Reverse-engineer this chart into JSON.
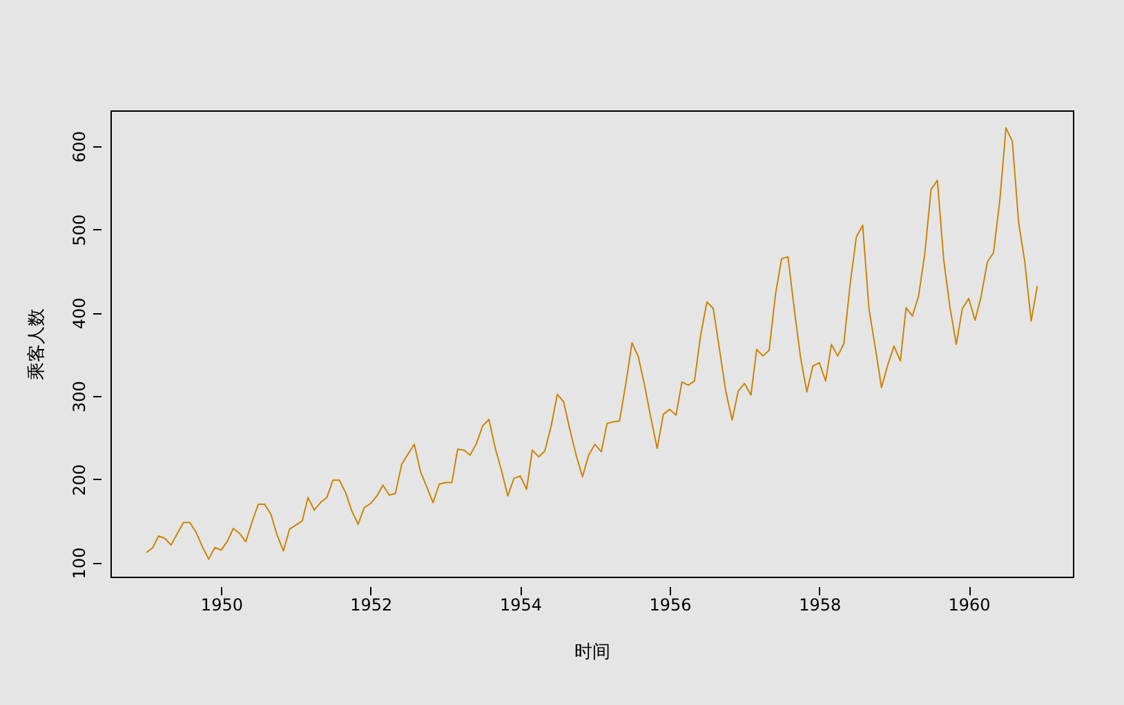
{
  "chart_data": {
    "type": "line",
    "xlabel": "时间",
    "ylabel": "乘客人数",
    "x": [
      "1949-01",
      "1949-02",
      "1949-03",
      "1949-04",
      "1949-05",
      "1949-06",
      "1949-07",
      "1949-08",
      "1949-09",
      "1949-10",
      "1949-11",
      "1949-12",
      "1950-01",
      "1950-02",
      "1950-03",
      "1950-04",
      "1950-05",
      "1950-06",
      "1950-07",
      "1950-08",
      "1950-09",
      "1950-10",
      "1950-11",
      "1950-12",
      "1951-01",
      "1951-02",
      "1951-03",
      "1951-04",
      "1951-05",
      "1951-06",
      "1951-07",
      "1951-08",
      "1951-09",
      "1951-10",
      "1951-11",
      "1951-12",
      "1952-01",
      "1952-02",
      "1952-03",
      "1952-04",
      "1952-05",
      "1952-06",
      "1952-07",
      "1952-08",
      "1952-09",
      "1952-10",
      "1952-11",
      "1952-12",
      "1953-01",
      "1953-02",
      "1953-03",
      "1953-04",
      "1953-05",
      "1953-06",
      "1953-07",
      "1953-08",
      "1953-09",
      "1953-10",
      "1953-11",
      "1953-12",
      "1954-01",
      "1954-02",
      "1954-03",
      "1954-04",
      "1954-05",
      "1954-06",
      "1954-07",
      "1954-08",
      "1954-09",
      "1954-10",
      "1954-11",
      "1954-12",
      "1955-01",
      "1955-02",
      "1955-03",
      "1955-04",
      "1955-05",
      "1955-06",
      "1955-07",
      "1955-08",
      "1955-09",
      "1955-10",
      "1955-11",
      "1955-12",
      "1956-01",
      "1956-02",
      "1956-03",
      "1956-04",
      "1956-05",
      "1956-06",
      "1956-07",
      "1956-08",
      "1956-09",
      "1956-10",
      "1956-11",
      "1956-12",
      "1957-01",
      "1957-02",
      "1957-03",
      "1957-04",
      "1957-05",
      "1957-06",
      "1957-07",
      "1957-08",
      "1957-09",
      "1957-10",
      "1957-11",
      "1957-12",
      "1958-01",
      "1958-02",
      "1958-03",
      "1958-04",
      "1958-05",
      "1958-06",
      "1958-07",
      "1958-08",
      "1958-09",
      "1958-10",
      "1958-11",
      "1958-12",
      "1959-01",
      "1959-02",
      "1959-03",
      "1959-04",
      "1959-05",
      "1959-06",
      "1959-07",
      "1959-08",
      "1959-09",
      "1959-10",
      "1959-11",
      "1959-12",
      "1960-01",
      "1960-02",
      "1960-03",
      "1960-04",
      "1960-05",
      "1960-06",
      "1960-07",
      "1960-08",
      "1960-09",
      "1960-10",
      "1960-11",
      "1960-12"
    ],
    "series": [
      {
        "color": "#cc8400",
        "values": [
          112,
          118,
          132,
          129,
          121,
          135,
          148,
          148,
          136,
          119,
          104,
          118,
          115,
          126,
          141,
          135,
          125,
          149,
          170,
          170,
          158,
          133,
          114,
          140,
          145,
          150,
          178,
          163,
          172,
          178,
          199,
          199,
          184,
          162,
          146,
          166,
          171,
          180,
          193,
          181,
          183,
          218,
          230,
          242,
          209,
          191,
          172,
          194,
          196,
          196,
          236,
          235,
          229,
          243,
          264,
          272,
          237,
          211,
          180,
          201,
          204,
          188,
          235,
          227,
          234,
          264,
          302,
          293,
          259,
          229,
          203,
          229,
          242,
          233,
          267,
          269,
          270,
          315,
          364,
          347,
          312,
          274,
          237,
          278,
          284,
          277,
          317,
          313,
          318,
          374,
          413,
          405,
          355,
          306,
          271,
          306,
          315,
          301,
          356,
          348,
          355,
          422,
          465,
          467,
          404,
          347,
          305,
          336,
          340,
          318,
          362,
          348,
          363,
          435,
          491,
          505,
          404,
          359,
          310,
          337,
          360,
          342,
          406,
          396,
          420,
          472,
          548,
          559,
          463,
          407,
          362,
          405,
          417,
          391,
          419,
          461,
          472,
          535,
          622,
          606,
          508,
          461,
          390,
          432
        ]
      }
    ],
    "xlim": [
      "1948-07-09",
      "1961-05-24"
    ],
    "xticks": [
      "1950",
      "1952",
      "1954",
      "1956",
      "1958",
      "1960"
    ],
    "ylim": [
      83,
      643
    ],
    "yticks": [
      100,
      200,
      300,
      400,
      500,
      600
    ],
    "grid": false,
    "marker": "none",
    "line_style": "solid"
  }
}
